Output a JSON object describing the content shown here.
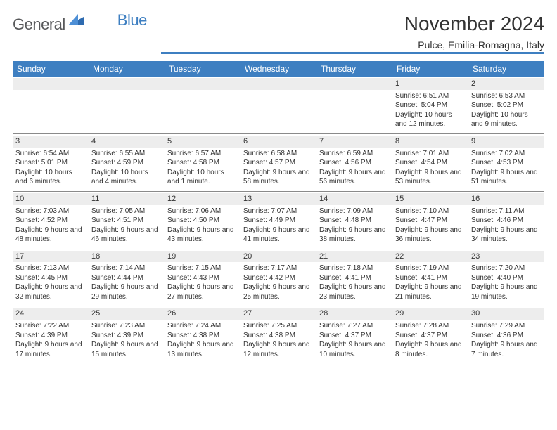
{
  "brand": {
    "name1": "General",
    "name2": "Blue"
  },
  "title": "November 2024",
  "location": "Pulce, Emilia-Romagna, Italy",
  "colors": {
    "header_bg": "#3e7fc1",
    "header_text": "#ffffff",
    "daynum_bg": "#ededed",
    "text": "#333333",
    "rule": "#8a8a8a",
    "page_bg": "#ffffff"
  },
  "day_headers": [
    "Sunday",
    "Monday",
    "Tuesday",
    "Wednesday",
    "Thursday",
    "Friday",
    "Saturday"
  ],
  "weeks": [
    [
      {
        "empty": true
      },
      {
        "empty": true
      },
      {
        "empty": true
      },
      {
        "empty": true
      },
      {
        "empty": true
      },
      {
        "day": "1",
        "sunrise": "Sunrise: 6:51 AM",
        "sunset": "Sunset: 5:04 PM",
        "daylight": "Daylight: 10 hours and 12 minutes."
      },
      {
        "day": "2",
        "sunrise": "Sunrise: 6:53 AM",
        "sunset": "Sunset: 5:02 PM",
        "daylight": "Daylight: 10 hours and 9 minutes."
      }
    ],
    [
      {
        "day": "3",
        "sunrise": "Sunrise: 6:54 AM",
        "sunset": "Sunset: 5:01 PM",
        "daylight": "Daylight: 10 hours and 6 minutes."
      },
      {
        "day": "4",
        "sunrise": "Sunrise: 6:55 AM",
        "sunset": "Sunset: 4:59 PM",
        "daylight": "Daylight: 10 hours and 4 minutes."
      },
      {
        "day": "5",
        "sunrise": "Sunrise: 6:57 AM",
        "sunset": "Sunset: 4:58 PM",
        "daylight": "Daylight: 10 hours and 1 minute."
      },
      {
        "day": "6",
        "sunrise": "Sunrise: 6:58 AM",
        "sunset": "Sunset: 4:57 PM",
        "daylight": "Daylight: 9 hours and 58 minutes."
      },
      {
        "day": "7",
        "sunrise": "Sunrise: 6:59 AM",
        "sunset": "Sunset: 4:56 PM",
        "daylight": "Daylight: 9 hours and 56 minutes."
      },
      {
        "day": "8",
        "sunrise": "Sunrise: 7:01 AM",
        "sunset": "Sunset: 4:54 PM",
        "daylight": "Daylight: 9 hours and 53 minutes."
      },
      {
        "day": "9",
        "sunrise": "Sunrise: 7:02 AM",
        "sunset": "Sunset: 4:53 PM",
        "daylight": "Daylight: 9 hours and 51 minutes."
      }
    ],
    [
      {
        "day": "10",
        "sunrise": "Sunrise: 7:03 AM",
        "sunset": "Sunset: 4:52 PM",
        "daylight": "Daylight: 9 hours and 48 minutes."
      },
      {
        "day": "11",
        "sunrise": "Sunrise: 7:05 AM",
        "sunset": "Sunset: 4:51 PM",
        "daylight": "Daylight: 9 hours and 46 minutes."
      },
      {
        "day": "12",
        "sunrise": "Sunrise: 7:06 AM",
        "sunset": "Sunset: 4:50 PM",
        "daylight": "Daylight: 9 hours and 43 minutes."
      },
      {
        "day": "13",
        "sunrise": "Sunrise: 7:07 AM",
        "sunset": "Sunset: 4:49 PM",
        "daylight": "Daylight: 9 hours and 41 minutes."
      },
      {
        "day": "14",
        "sunrise": "Sunrise: 7:09 AM",
        "sunset": "Sunset: 4:48 PM",
        "daylight": "Daylight: 9 hours and 38 minutes."
      },
      {
        "day": "15",
        "sunrise": "Sunrise: 7:10 AM",
        "sunset": "Sunset: 4:47 PM",
        "daylight": "Daylight: 9 hours and 36 minutes."
      },
      {
        "day": "16",
        "sunrise": "Sunrise: 7:11 AM",
        "sunset": "Sunset: 4:46 PM",
        "daylight": "Daylight: 9 hours and 34 minutes."
      }
    ],
    [
      {
        "day": "17",
        "sunrise": "Sunrise: 7:13 AM",
        "sunset": "Sunset: 4:45 PM",
        "daylight": "Daylight: 9 hours and 32 minutes."
      },
      {
        "day": "18",
        "sunrise": "Sunrise: 7:14 AM",
        "sunset": "Sunset: 4:44 PM",
        "daylight": "Daylight: 9 hours and 29 minutes."
      },
      {
        "day": "19",
        "sunrise": "Sunrise: 7:15 AM",
        "sunset": "Sunset: 4:43 PM",
        "daylight": "Daylight: 9 hours and 27 minutes."
      },
      {
        "day": "20",
        "sunrise": "Sunrise: 7:17 AM",
        "sunset": "Sunset: 4:42 PM",
        "daylight": "Daylight: 9 hours and 25 minutes."
      },
      {
        "day": "21",
        "sunrise": "Sunrise: 7:18 AM",
        "sunset": "Sunset: 4:41 PM",
        "daylight": "Daylight: 9 hours and 23 minutes."
      },
      {
        "day": "22",
        "sunrise": "Sunrise: 7:19 AM",
        "sunset": "Sunset: 4:41 PM",
        "daylight": "Daylight: 9 hours and 21 minutes."
      },
      {
        "day": "23",
        "sunrise": "Sunrise: 7:20 AM",
        "sunset": "Sunset: 4:40 PM",
        "daylight": "Daylight: 9 hours and 19 minutes."
      }
    ],
    [
      {
        "day": "24",
        "sunrise": "Sunrise: 7:22 AM",
        "sunset": "Sunset: 4:39 PM",
        "daylight": "Daylight: 9 hours and 17 minutes."
      },
      {
        "day": "25",
        "sunrise": "Sunrise: 7:23 AM",
        "sunset": "Sunset: 4:39 PM",
        "daylight": "Daylight: 9 hours and 15 minutes."
      },
      {
        "day": "26",
        "sunrise": "Sunrise: 7:24 AM",
        "sunset": "Sunset: 4:38 PM",
        "daylight": "Daylight: 9 hours and 13 minutes."
      },
      {
        "day": "27",
        "sunrise": "Sunrise: 7:25 AM",
        "sunset": "Sunset: 4:38 PM",
        "daylight": "Daylight: 9 hours and 12 minutes."
      },
      {
        "day": "28",
        "sunrise": "Sunrise: 7:27 AM",
        "sunset": "Sunset: 4:37 PM",
        "daylight": "Daylight: 9 hours and 10 minutes."
      },
      {
        "day": "29",
        "sunrise": "Sunrise: 7:28 AM",
        "sunset": "Sunset: 4:37 PM",
        "daylight": "Daylight: 9 hours and 8 minutes."
      },
      {
        "day": "30",
        "sunrise": "Sunrise: 7:29 AM",
        "sunset": "Sunset: 4:36 PM",
        "daylight": "Daylight: 9 hours and 7 minutes."
      }
    ]
  ]
}
